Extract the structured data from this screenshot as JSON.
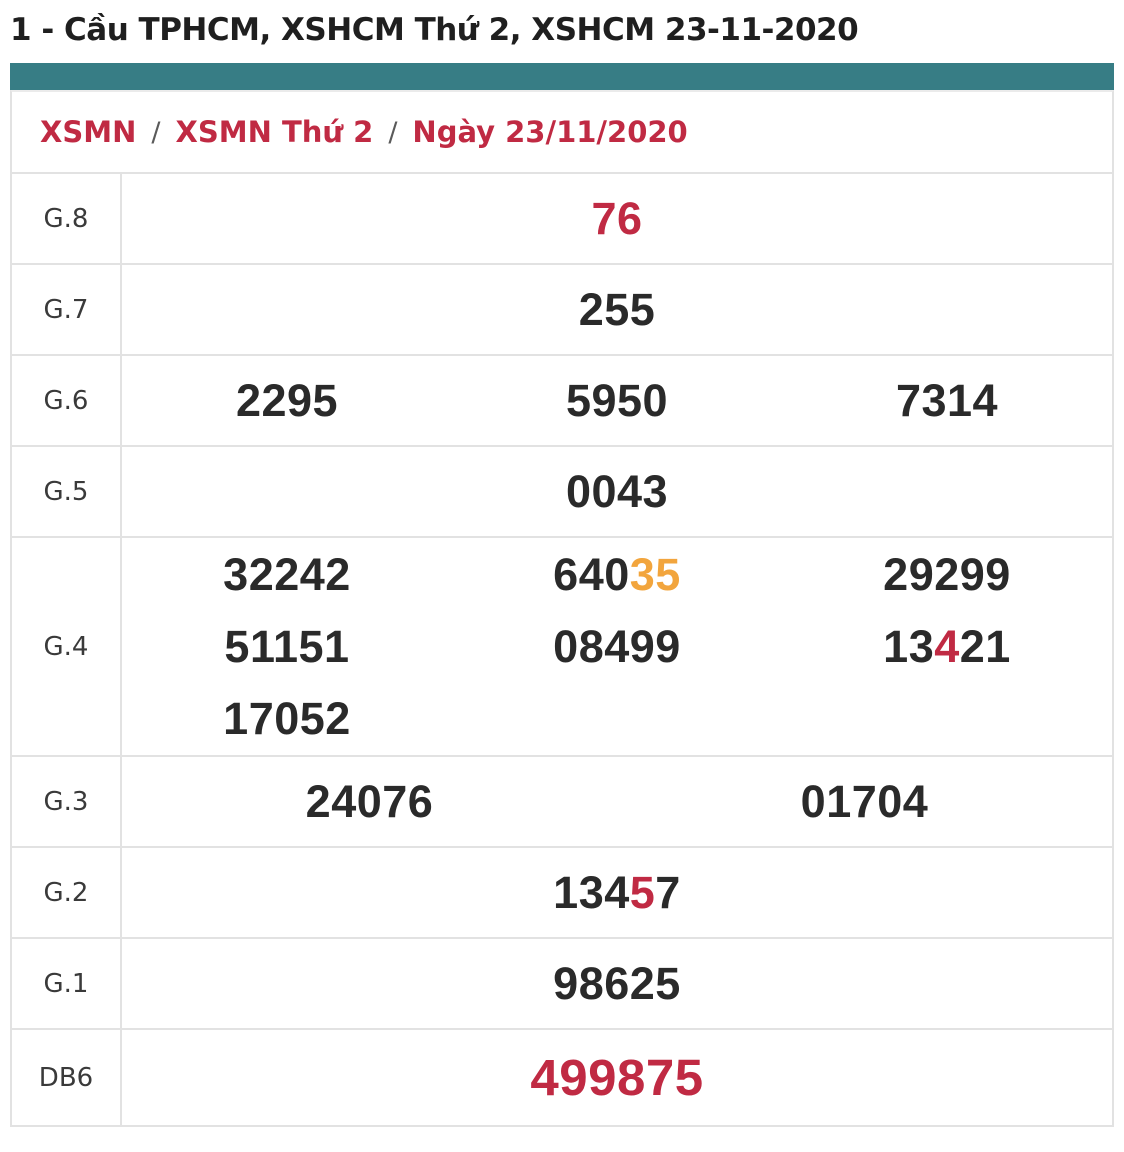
{
  "page_title": "1 - Cầu TPHCM, XSHCM Thứ 2, XSHCM 23-11-2020",
  "colors": {
    "accent_teal": "#377d85",
    "highlight_red": "#c02a43",
    "highlight_orange": "#f2a53d",
    "text_dark": "#2a2a2a",
    "border_gray": "#e2e2e2"
  },
  "breadcrumb": {
    "separator": "/",
    "items": [
      {
        "label": "XSMN"
      },
      {
        "label": "XSMN Thứ 2"
      },
      {
        "label": "Ngày 23/11/2020"
      }
    ]
  },
  "results_table": {
    "rows": [
      {
        "label": "G.8",
        "lines": [
          [
            {
              "segments": [
                {
                  "t": "76",
                  "c": "red"
                }
              ]
            }
          ]
        ]
      },
      {
        "label": "G.7",
        "lines": [
          [
            {
              "segments": [
                {
                  "t": "255"
                }
              ]
            }
          ]
        ]
      },
      {
        "label": "G.6",
        "lines": [
          [
            {
              "segments": [
                {
                  "t": "2295"
                }
              ]
            },
            {
              "segments": [
                {
                  "t": "5950"
                }
              ]
            },
            {
              "segments": [
                {
                  "t": "7314"
                }
              ]
            }
          ]
        ]
      },
      {
        "label": "G.5",
        "lines": [
          [
            {
              "segments": [
                {
                  "t": "0043"
                }
              ]
            }
          ]
        ]
      },
      {
        "label": "G.4",
        "lines": [
          [
            {
              "segments": [
                {
                  "t": "32242"
                }
              ]
            },
            {
              "segments": [
                {
                  "t": "640"
                },
                {
                  "t": "35",
                  "c": "orange"
                }
              ]
            },
            {
              "segments": [
                {
                  "t": "29299"
                }
              ]
            }
          ],
          [
            {
              "segments": [
                {
                  "t": "51151"
                }
              ]
            },
            {
              "segments": [
                {
                  "t": "08499"
                }
              ]
            },
            {
              "segments": [
                {
                  "t": "13"
                },
                {
                  "t": "4",
                  "c": "red"
                },
                {
                  "t": "21"
                }
              ]
            }
          ],
          [
            {
              "segments": [
                {
                  "t": "17052"
                }
              ]
            },
            null,
            null
          ]
        ]
      },
      {
        "label": "G.3",
        "lines": [
          [
            {
              "segments": [
                {
                  "t": "24076"
                }
              ]
            },
            {
              "segments": [
                {
                  "t": "01704"
                }
              ]
            }
          ]
        ]
      },
      {
        "label": "G.2",
        "lines": [
          [
            {
              "segments": [
                {
                  "t": "134"
                },
                {
                  "t": "5",
                  "c": "red"
                },
                {
                  "t": "7"
                }
              ]
            }
          ]
        ]
      },
      {
        "label": "G.1",
        "lines": [
          [
            {
              "segments": [
                {
                  "t": "98625"
                }
              ]
            }
          ]
        ]
      },
      {
        "label": "DB6",
        "big": true,
        "lines": [
          [
            {
              "segments": [
                {
                  "t": "499875",
                  "c": "red"
                }
              ]
            }
          ]
        ]
      }
    ]
  }
}
